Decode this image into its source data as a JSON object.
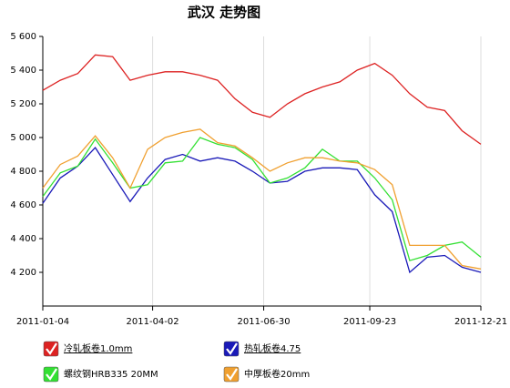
{
  "chart_data": {
    "type": "line",
    "title": "武汉 走势图",
    "x": [
      "2011-01-04",
      "2011-01-18",
      "2011-02-01",
      "2011-02-15",
      "2011-03-01",
      "2011-03-15",
      "2011-03-29",
      "2011-04-12",
      "2011-04-26",
      "2011-05-10",
      "2011-05-24",
      "2011-06-07",
      "2011-06-21",
      "2011-07-05",
      "2011-07-19",
      "2011-08-02",
      "2011-08-16",
      "2011-08-30",
      "2011-09-13",
      "2011-09-27",
      "2011-10-11",
      "2011-10-25",
      "2011-11-08",
      "2011-11-22",
      "2011-12-06",
      "2011-12-21"
    ],
    "series": [
      {
        "name": "冷轧板卷1.0mm",
        "color": "#dd2222",
        "values": [
          5280,
          5340,
          5380,
          5490,
          5480,
          5340,
          5370,
          5390,
          5390,
          5370,
          5340,
          5230,
          5150,
          5120,
          5200,
          5260,
          5300,
          5330,
          5400,
          5440,
          5370,
          5260,
          5180,
          5160,
          5040,
          4960
        ]
      },
      {
        "name": "热轧板卷4.75",
        "color": "#1a1ab8",
        "values": [
          4610,
          4760,
          4830,
          4940,
          4780,
          4620,
          4760,
          4870,
          4900,
          4860,
          4880,
          4860,
          4800,
          4730,
          4740,
          4800,
          4820,
          4820,
          4810,
          4660,
          4560,
          4200,
          4290,
          4300,
          4230,
          4200
        ]
      },
      {
        "name": "螺纹钢HRB335 20MM",
        "color": "#33e033",
        "values": [
          4650,
          4790,
          4830,
          4990,
          4850,
          4700,
          4720,
          4850,
          4860,
          5000,
          4960,
          4940,
          4870,
          4730,
          4760,
          4820,
          4930,
          4860,
          4860,
          4760,
          4630,
          4270,
          4300,
          4360,
          4380,
          4290
        ]
      },
      {
        "name": "中厚板卷20mm",
        "color": "#f0a030",
        "values": [
          4700,
          4840,
          4890,
          5010,
          4880,
          4700,
          4930,
          5000,
          5030,
          5050,
          4970,
          4950,
          4880,
          4800,
          4850,
          4880,
          4880,
          4860,
          4850,
          4810,
          4720,
          4360,
          4360,
          4360,
          4240,
          4220
        ]
      }
    ],
    "xlim": [
      "2011-01-04",
      "2011-12-21"
    ],
    "xticks": [
      "2011-01-04",
      "2011-04-02",
      "2011-06-30",
      "2011-09-23",
      "2011-12-21"
    ],
    "ylim": [
      4000,
      5600
    ],
    "yticks": [
      {
        "value": 4200,
        "label": "4 200"
      },
      {
        "value": 4400,
        "label": "4 400"
      },
      {
        "value": 4600,
        "label": "4 600"
      },
      {
        "value": 4800,
        "label": "4 800"
      },
      {
        "value": 5000,
        "label": "5 000"
      },
      {
        "value": 5200,
        "label": "5 200"
      },
      {
        "value": 5400,
        "label": "5 400"
      },
      {
        "value": 5600,
        "label": "5 600"
      }
    ],
    "grid": "x"
  }
}
